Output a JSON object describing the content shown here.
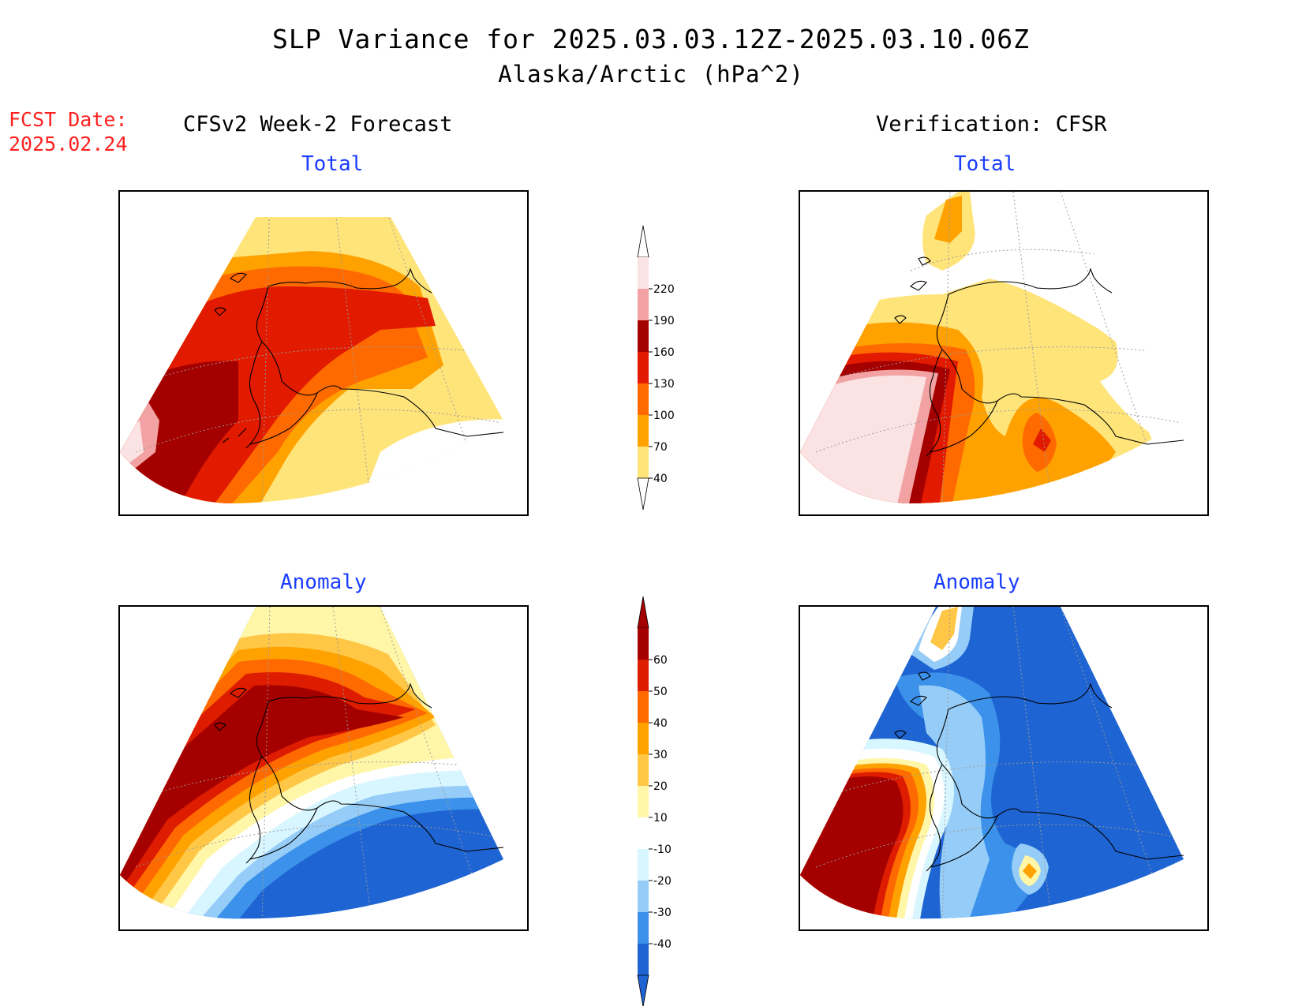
{
  "header": {
    "title": "SLP Variance for 2025.03.03.12Z-2025.03.10.06Z",
    "subtitle": "Alaska/Arctic (hPa^2)"
  },
  "fcst_date": {
    "label": "FCST Date:",
    "value": "2025.02.24"
  },
  "columns": {
    "left": "CFSv2 Week-2 Forecast",
    "right": "Verification: CFSR"
  },
  "panels": {
    "forecast_total": "Total",
    "forecast_anomaly": "Anomaly",
    "verification_total": "Total",
    "verification_anomaly": "Anomaly"
  },
  "colorbars": {
    "total": {
      "levels": [
        "220",
        "190",
        "160",
        "130",
        "100",
        "70",
        "40"
      ],
      "colors": [
        "#fbe3e3",
        "#f2a2a2",
        "#a50000",
        "#e11a00",
        "#ff6a00",
        "#ffa200",
        "#ffe47a"
      ]
    },
    "anomaly": {
      "levels": [
        "60",
        "50",
        "40",
        "30",
        "20",
        "10",
        "-10",
        "-20",
        "-30",
        "-40"
      ],
      "colors": [
        "#a50000",
        "#dd1c00",
        "#ff6a00",
        "#ffa200",
        "#ffc745",
        "#fff6a8",
        "#ffffff",
        "#d8f6ff",
        "#96cdf8",
        "#3c92ea",
        "#1e64d2"
      ]
    }
  },
  "legend_colors": {
    "title": "#000000",
    "fcst": "#ff2020",
    "panel_title": "#1a3cff",
    "coast": "#000000",
    "grid": "#9a9a9a"
  }
}
